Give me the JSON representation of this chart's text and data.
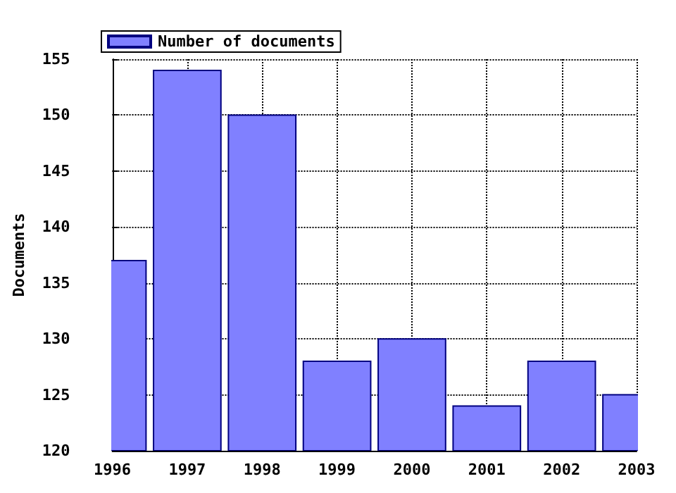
{
  "chart_data": {
    "type": "bar",
    "ylabel": "Documents",
    "x": [
      1996,
      1997,
      1998,
      1999,
      2000,
      2001,
      2002,
      2003
    ],
    "series": [
      {
        "name": "Number of documents",
        "color": "#8080ff",
        "values": [
          137,
          154,
          150,
          128,
          130,
          124,
          128,
          125
        ]
      }
    ],
    "xlim": [
      1996,
      2003
    ],
    "xticks": [
      1996,
      1997,
      1998,
      1999,
      2000,
      2001,
      2002,
      2003
    ],
    "ylim": [
      120,
      155
    ],
    "yticks": [
      120,
      125,
      130,
      135,
      140,
      145,
      150,
      155
    ],
    "grid": true,
    "legend": "top left"
  }
}
